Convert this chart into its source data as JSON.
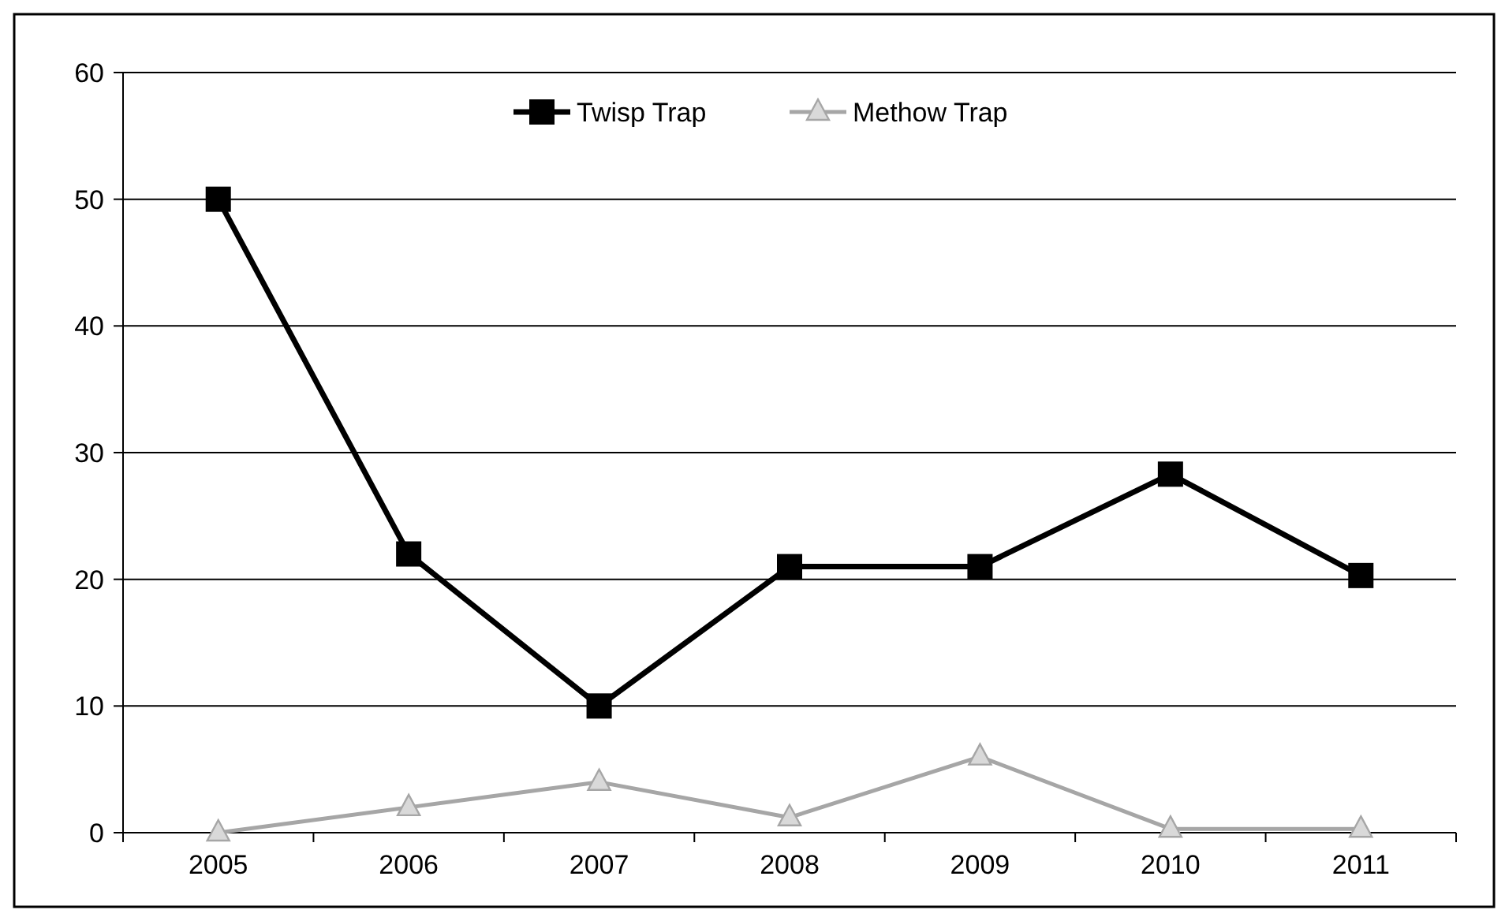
{
  "chart_data": {
    "type": "line",
    "categories": [
      "2005",
      "2006",
      "2007",
      "2008",
      "2009",
      "2010",
      "2011"
    ],
    "series": [
      {
        "name": "Twisp Trap",
        "color": "#000000",
        "marker": "square",
        "values": [
          50,
          22,
          10,
          21,
          21,
          28.3,
          20.3
        ]
      },
      {
        "name": "Methow Trap",
        "color": "#a6a6a6",
        "marker": "triangle",
        "values": [
          0,
          2,
          4,
          1.2,
          6,
          0.3,
          0.3
        ]
      }
    ],
    "ylim": [
      0,
      60
    ],
    "yticks": [
      0,
      10,
      20,
      30,
      40,
      50,
      60
    ],
    "grid": "y",
    "legend": "top"
  }
}
